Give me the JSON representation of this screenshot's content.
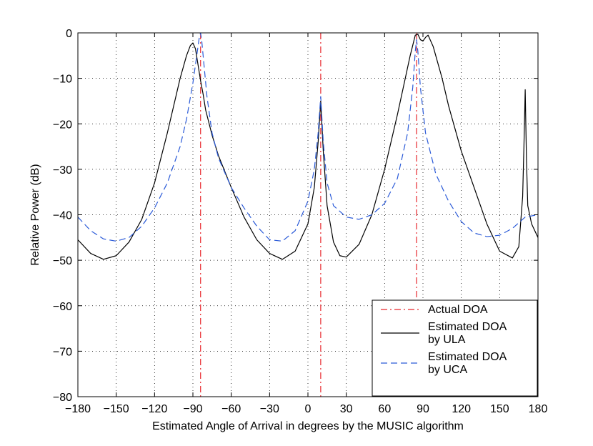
{
  "chart_data": {
    "type": "line",
    "title": "",
    "xlabel": "Estimated Angle of Arrival in degrees by the MUSIC algorithm",
    "ylabel": "Relative Power (dB)",
    "xlim": [
      -180,
      180
    ],
    "ylim": [
      -80,
      0
    ],
    "xticks": [
      -180,
      -150,
      -120,
      -90,
      -60,
      -30,
      0,
      30,
      60,
      90,
      120,
      150,
      180
    ],
    "yticks": [
      -80,
      -70,
      -60,
      -50,
      -40,
      -30,
      -20,
      -10,
      0
    ],
    "xtick_labels": [
      "−180",
      "−150",
      "−120",
      "−90",
      "−60",
      "−30",
      "0",
      "30",
      "60",
      "90",
      "120",
      "150",
      "180"
    ],
    "ytick_labels": [
      "−80",
      "−70",
      "−60",
      "−50",
      "−40",
      "−30",
      "−20",
      "−10",
      "0"
    ],
    "grid": true,
    "legend_position": "bottom-right",
    "series": [
      {
        "name": "Actual DOA",
        "style": "dash-dot",
        "color": "#e8262b",
        "vlines_x": [
          -84,
          10,
          85
        ]
      },
      {
        "name": "Estimated DOA by ULA",
        "style": "solid",
        "color": "#000000",
        "x": [
          -180,
          -170,
          -160,
          -150,
          -140,
          -130,
          -120,
          -110,
          -100,
          -95,
          -92,
          -90,
          -88,
          -86,
          -84,
          -82,
          -80,
          -75,
          -70,
          -60,
          -50,
          -40,
          -30,
          -20,
          -10,
          0,
          5,
          8,
          10,
          12,
          15,
          20,
          25,
          30,
          40,
          50,
          60,
          70,
          80,
          84,
          86,
          88,
          90,
          92,
          94,
          98,
          105,
          110,
          120,
          130,
          140,
          150,
          160,
          165,
          168,
          169,
          170,
          171,
          172,
          175,
          180
        ],
        "y": [
          -45.5,
          -48.5,
          -49.8,
          -49.0,
          -46.0,
          -41.0,
          -33.0,
          -22.0,
          -10.0,
          -5.0,
          -2.8,
          -2.2,
          -3.5,
          -7.0,
          -10.5,
          -13.5,
          -17.0,
          -22.5,
          -27.0,
          -34.0,
          -40.5,
          -45.5,
          -48.5,
          -49.8,
          -48.0,
          -42.0,
          -34.0,
          -24.0,
          -15.0,
          -26.0,
          -38.0,
          -46.0,
          -49.0,
          -49.3,
          -46.5,
          -40.0,
          -30.0,
          -18.0,
          -5.0,
          -0.5,
          -0.3,
          -1.5,
          -1.8,
          -1.0,
          -0.5,
          -3.0,
          -10.0,
          -16.0,
          -26.0,
          -34.0,
          -42.0,
          -48.0,
          -49.5,
          -47.0,
          -36.0,
          -25.0,
          -12.5,
          -28.0,
          -38.0,
          -42.0,
          -45.0
        ]
      },
      {
        "name": "Estimated DOA by UCA",
        "style": "dashed",
        "color": "#2a5ad8",
        "x": [
          -180,
          -170,
          -160,
          -150,
          -140,
          -130,
          -120,
          -110,
          -100,
          -95,
          -90,
          -87,
          -85,
          -84,
          -83,
          -81,
          -79,
          -75,
          -70,
          -60,
          -50,
          -40,
          -30,
          -20,
          -10,
          0,
          5,
          8,
          10,
          12,
          15,
          20,
          30,
          40,
          50,
          60,
          70,
          78,
          82,
          84,
          85,
          86,
          88,
          92,
          100,
          110,
          120,
          130,
          140,
          150,
          160,
          170,
          180
        ],
        "y": [
          -40.5,
          -43.5,
          -45.3,
          -45.8,
          -45.0,
          -42.5,
          -38.5,
          -33.0,
          -25.0,
          -19.0,
          -11.0,
          -5.0,
          -1.0,
          0.0,
          -2.0,
          -8.0,
          -14.0,
          -22.0,
          -27.5,
          -34.0,
          -38.5,
          -42.5,
          -45.5,
          -45.8,
          -43.5,
          -37.0,
          -30.0,
          -22.0,
          -14.0,
          -24.0,
          -33.0,
          -38.0,
          -40.5,
          -41.0,
          -40.0,
          -37.5,
          -32.0,
          -22.0,
          -12.0,
          -4.0,
          -1.5,
          -4.0,
          -12.0,
          -22.0,
          -31.0,
          -37.0,
          -41.5,
          -44.0,
          -44.8,
          -44.5,
          -43.0,
          -40.5,
          -40.0
        ]
      }
    ],
    "legend": {
      "entries": [
        {
          "lines": [
            "Actual DOA"
          ],
          "style": "dash-dot",
          "color": "#e8262b"
        },
        {
          "lines": [
            "Estimated DOA",
            "by ULA"
          ],
          "style": "solid",
          "color": "#000000"
        },
        {
          "lines": [
            "Estimated DOA",
            "by UCA"
          ],
          "style": "dashed",
          "color": "#2a5ad8"
        }
      ]
    }
  }
}
